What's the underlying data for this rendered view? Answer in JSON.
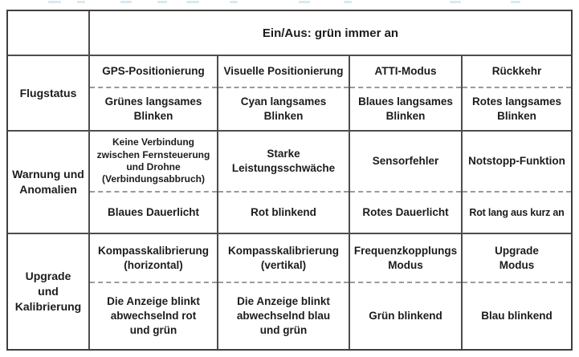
{
  "table": {
    "header": {
      "title": "Ein/Aus: grün immer an"
    },
    "groups": [
      {
        "label": "Flugstatus",
        "columns": [
          {
            "mode": "GPS-Positionierung",
            "indicator": "Grünes langsames\nBlinken"
          },
          {
            "mode": "Visuelle Positionierung",
            "indicator": "Cyan langsames\nBlinken"
          },
          {
            "mode": "ATTI-Modus",
            "indicator": "Blaues langsames\nBlinken"
          },
          {
            "mode": "Rückkehr",
            "indicator": "Rotes langsames\nBlinken"
          }
        ]
      },
      {
        "label": "Warnung und\nAnomalien",
        "columns": [
          {
            "mode": "Keine Verbindung\nzwischen Fernsteuerung\nund Drohne\n(Verbindungsabbruch)",
            "indicator": "Blaues Dauerlicht"
          },
          {
            "mode": "Starke\nLeistungsschwäche",
            "indicator": "Rot blinkend"
          },
          {
            "mode": "Sensorfehler",
            "indicator": "Rotes Dauerlicht"
          },
          {
            "mode": "Notstopp-Funktion",
            "indicator": "Rot lang aus kurz an"
          }
        ]
      },
      {
        "label": "Upgrade\nund\nKalibrierung",
        "columns": [
          {
            "mode": "Kompasskalibrierung\n(horizontal)",
            "indicator": "Die Anzeige blinkt\nabwechselnd rot\nund grün"
          },
          {
            "mode": "Kompasskalibrierung\n(vertikal)",
            "indicator": "Die Anzeige blinkt\nabwechselnd blau\nund grün"
          },
          {
            "mode": "Frequenzkopplungs\nModus",
            "indicator": "Grün blinkend"
          },
          {
            "mode": "Upgrade\nModus",
            "indicator": "Blau blinkend"
          }
        ]
      }
    ]
  },
  "colors": {
    "border": "#4d4d4d",
    "dashed_divider": "#9a9a9a",
    "text": "#1c1c1c",
    "artifact_blue": "#cfe2ee"
  }
}
